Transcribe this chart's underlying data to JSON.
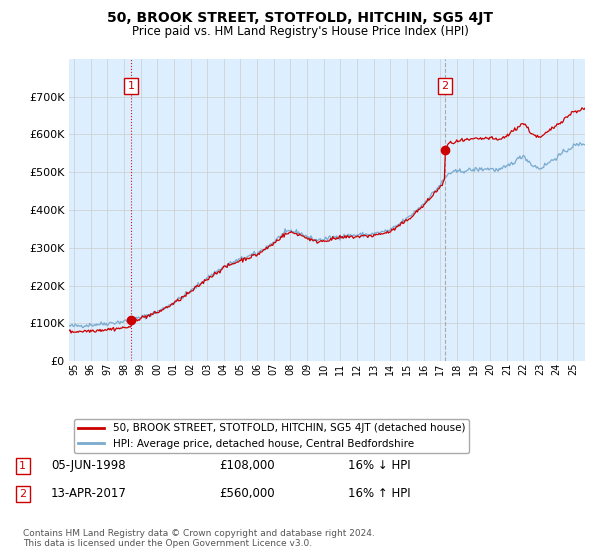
{
  "title": "50, BROOK STREET, STOTFOLD, HITCHIN, SG5 4JT",
  "subtitle": "Price paid vs. HM Land Registry's House Price Index (HPI)",
  "ylim": [
    0,
    800000
  ],
  "yticks": [
    0,
    100000,
    200000,
    300000,
    400000,
    500000,
    600000,
    700000
  ],
  "ytick_labels": [
    "£0",
    "£100K",
    "£200K",
    "£300K",
    "£400K",
    "£500K",
    "£600K",
    "£700K"
  ],
  "sale1_date_x": 1998.43,
  "sale1_price": 108000,
  "sale1_label": "1",
  "sale1_date_str": "05-JUN-1998",
  "sale1_price_str": "£108,000",
  "sale1_hpi_str": "16% ↓ HPI",
  "sale2_date_x": 2017.28,
  "sale2_price": 560000,
  "sale2_label": "2",
  "sale2_date_str": "13-APR-2017",
  "sale2_price_str": "£560,000",
  "sale2_hpi_str": "16% ↑ HPI",
  "red_line_color": "#cc0000",
  "blue_line_color": "#7aabcf",
  "vline1_color": "#cc0000",
  "vline2_color": "#999999",
  "grid_color": "#cccccc",
  "bg_color": "#ffffff",
  "plot_bg_color": "#ddeeff",
  "legend_label_red": "50, BROOK STREET, STOTFOLD, HITCHIN, SG5 4JT (detached house)",
  "legend_label_blue": "HPI: Average price, detached house, Central Bedfordshire",
  "footnote": "Contains HM Land Registry data © Crown copyright and database right 2024.\nThis data is licensed under the Open Government Licence v3.0.",
  "xmin": 1994.7,
  "xmax": 2025.7
}
